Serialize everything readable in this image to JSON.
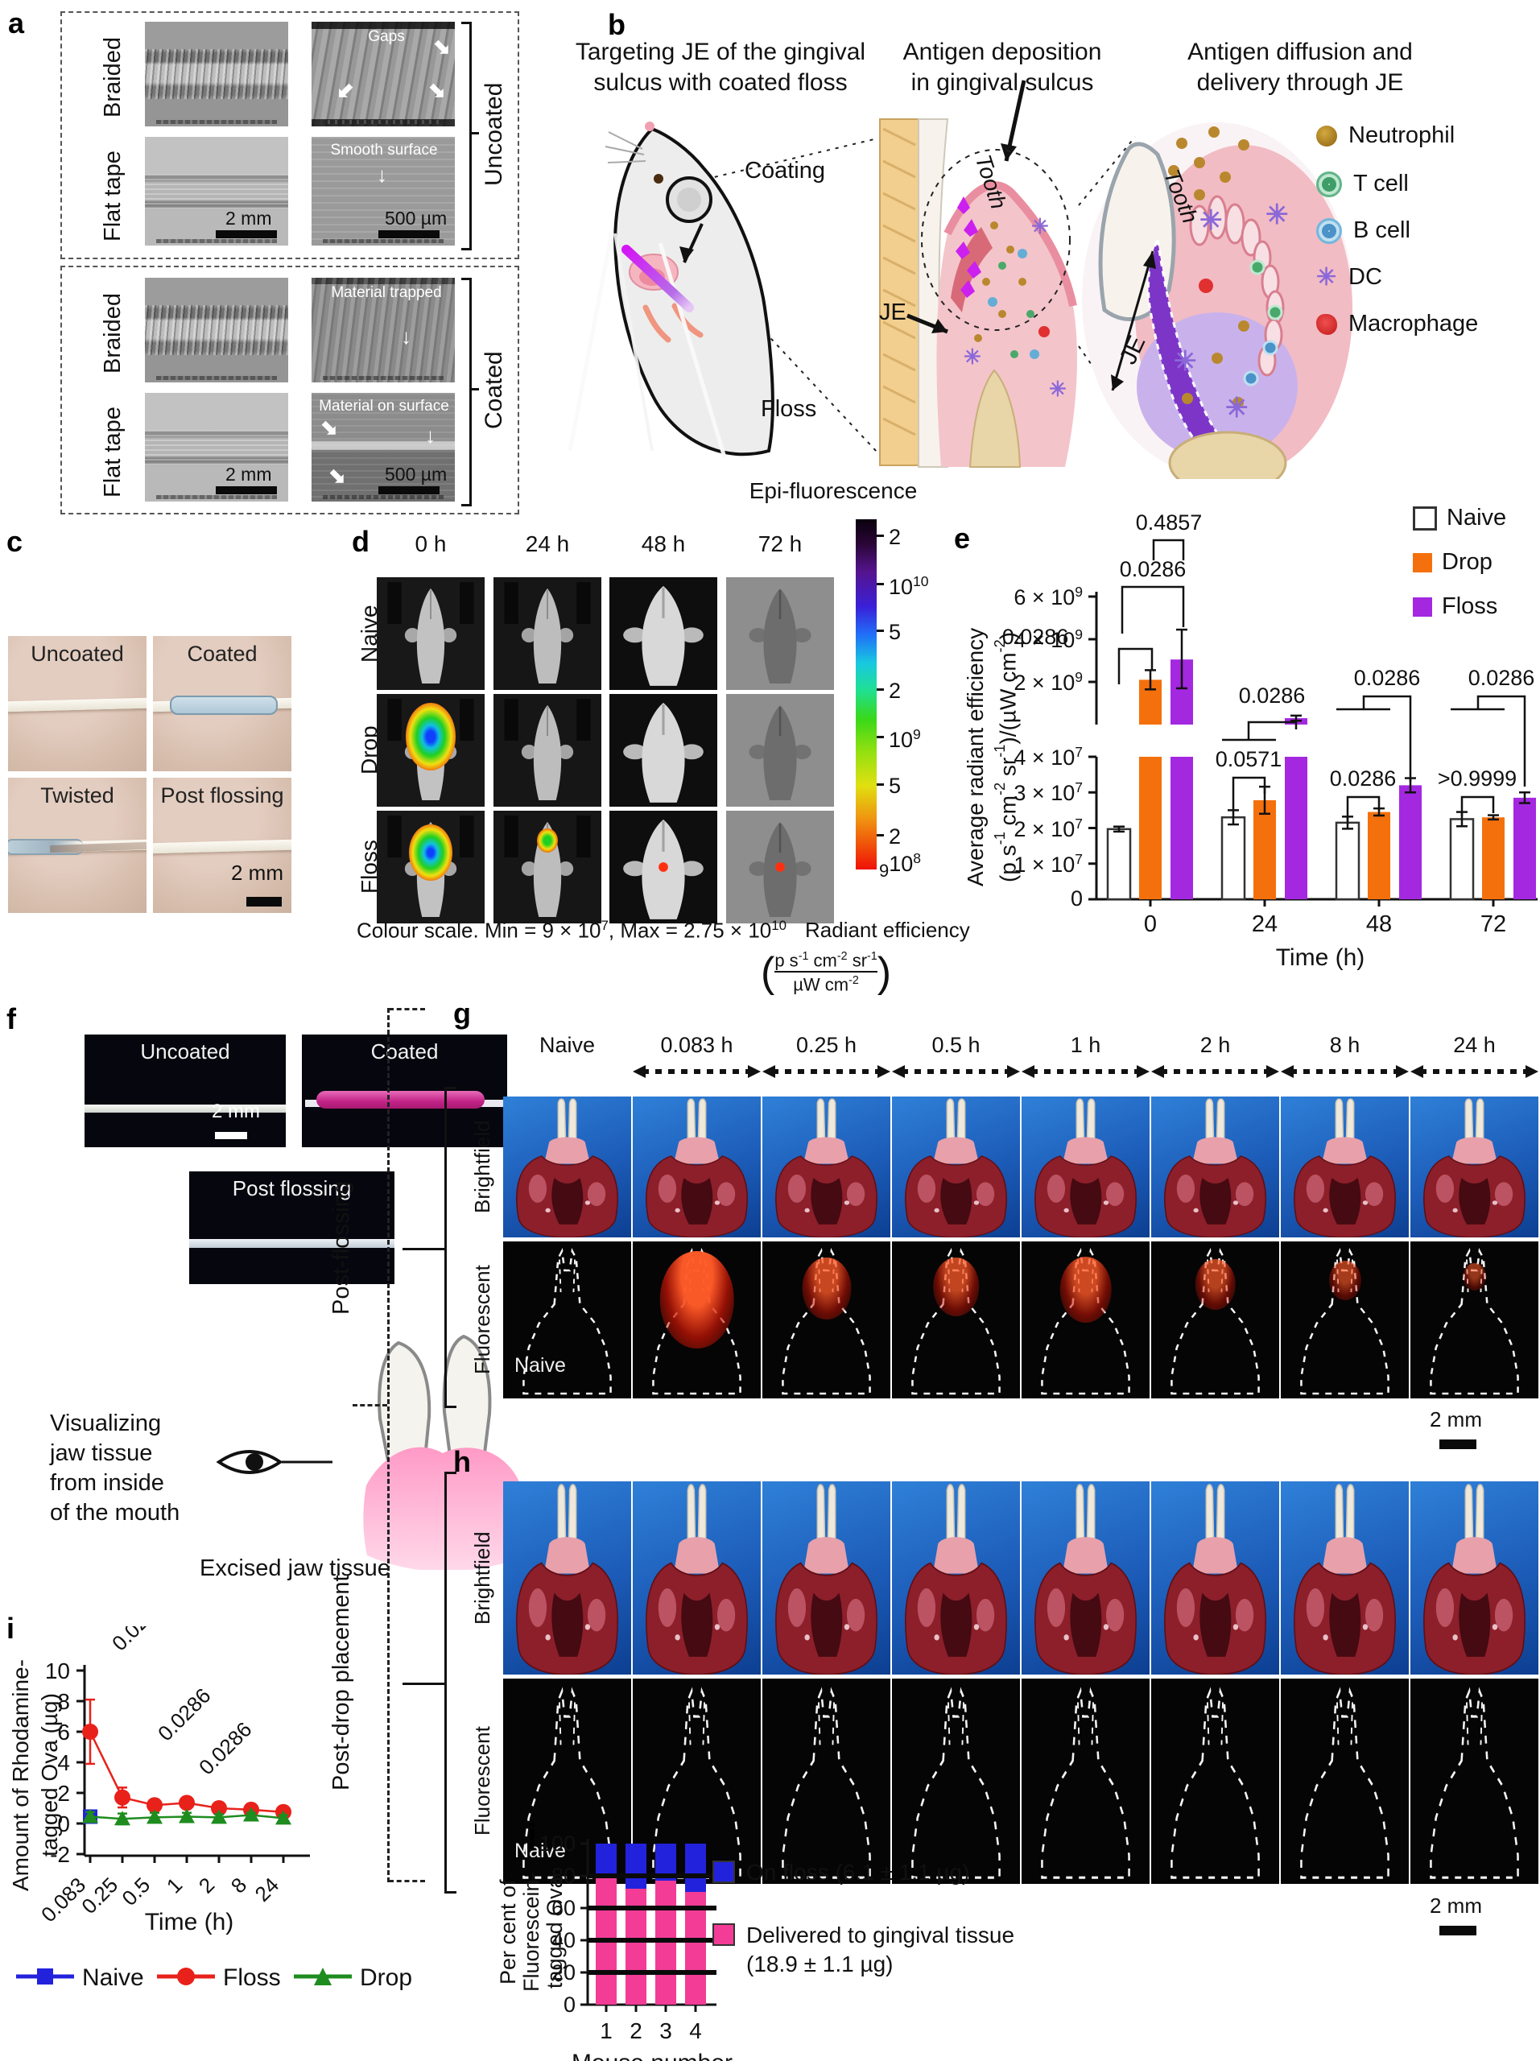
{
  "panel_a": {
    "label": "a",
    "row_labels": [
      "Braided",
      "Flat tape"
    ],
    "boxes": [
      {
        "side_label": "Uncoated",
        "ann_top": "Gaps",
        "ann_bottom": "Smooth surface",
        "scale_left": "2 mm",
        "scale_right": "500 µm"
      },
      {
        "side_label": "Coated",
        "ann_top": "Material trapped",
        "ann_bottom": "Material on surface",
        "scale_left": "2 mm",
        "scale_right": "500 µm"
      }
    ]
  },
  "panel_b": {
    "label": "b",
    "title1a": "Targeting JE of the gingival",
    "title1b": "sulcus with coated floss",
    "title2a": "Antigen deposition",
    "title2b": "in gingival sulcus",
    "title3a": "Antigen diffusion and",
    "title3b": "delivery through JE",
    "coating_label": "Coating",
    "floss_label": "Floss",
    "tooth_label_mid": "Tooth",
    "je_label_mid": "JE",
    "tooth_label_right": "Tooth",
    "je_label_right": "JE",
    "legend": [
      {
        "name": "Neutrophil",
        "icon": "neutrophil-icon"
      },
      {
        "name": "T cell",
        "icon": "tcell-icon"
      },
      {
        "name": "B cell",
        "icon": "bcell-icon"
      },
      {
        "name": "DC",
        "icon": "dc-icon"
      },
      {
        "name": "Macrophage",
        "icon": "macrophage-icon"
      }
    ]
  },
  "panel_c": {
    "label": "c",
    "images": [
      {
        "label": "Uncoated",
        "style": "plain"
      },
      {
        "label": "Coated",
        "style": "coated"
      },
      {
        "label": "Twisted",
        "style": "twisted"
      },
      {
        "label": "Post flossing",
        "style": "post",
        "scale": "2 mm"
      }
    ]
  },
  "panel_d": {
    "label": "d",
    "col_headers": [
      "0 h",
      "24 h",
      "48 h",
      "72 h"
    ],
    "row_headers": [
      "Naive",
      "Drop",
      "Floss"
    ],
    "signals": {
      "1-0": "large",
      "2-0": "large2",
      "2-1": "small",
      "2-2": "dot",
      "2-3": "dot"
    },
    "colorbar": {
      "title": "Epi-fluorescence",
      "ticks": [
        {
          "t": "2",
          "y": 652
        },
        {
          "t": "10^10",
          "y": 712
        },
        {
          "t": "5",
          "y": 770
        },
        {
          "t": "2",
          "y": 843
        },
        {
          "t": "10^9",
          "y": 902
        },
        {
          "t": "5",
          "y": 961
        },
        {
          "t": "2",
          "y": 1024
        }
      ],
      "bottom_prefix": "9",
      "bottom_label": "10^8"
    },
    "caption": "Colour scale. Min = 9 × 10^7, Max = 2.75 × 10^10",
    "radiant_label": "Radiant efficiency",
    "frac_top": "p s^-1 cm^-2 sr^-1",
    "frac_bottom": "µW cm^-2"
  },
  "panel_f": {
    "label": "f",
    "img1": "Uncoated",
    "img1_scale": "2 mm",
    "img2": "Coated",
    "img3": "Post flossing",
    "caption_lines": [
      "Visualizing",
      "jaw tissue",
      "from inside",
      "of the mouth"
    ],
    "sub_caption": "Excised jaw tissue"
  },
  "panel_g": {
    "label": "g",
    "col_headers": [
      "Naive",
      "0.083 h",
      "0.25 h",
      "0.5 h",
      "1 h",
      "2 h",
      "8 h",
      "24 h"
    ],
    "side_label": "Post-flossing",
    "row_headers": [
      "Brightfield",
      "Fluorescent"
    ],
    "naive_label": "Naive",
    "scale": "2 mm",
    "signals": [
      0,
      0.95,
      0.5,
      0.45,
      0.55,
      0.35,
      0.2,
      0.05
    ]
  },
  "panel_h": {
    "label": "h",
    "side_label": "Post-drop placement",
    "row_headers": [
      "Brightfield",
      "Fluorescent"
    ],
    "naive_label": "Naive",
    "scale": "2 mm",
    "signals": [
      0,
      0,
      0,
      0,
      0,
      0,
      0,
      0
    ]
  },
  "chart_data": [
    {
      "id": "e",
      "panel_label": "e",
      "type": "bar",
      "title": "",
      "xlabel": "Time (h)",
      "ylabel_line1": "Average radiant efficiency",
      "ylabel_line2": "(p s^-1 cm^-2 sr^-1)/(µW cm^-2)",
      "categories": [
        "0",
        "24",
        "48",
        "72"
      ],
      "upper_axis": {
        "unit": "1e9",
        "ticks": [
          {
            "t": "6 × 10^9",
            "v": 6
          },
          {
            "t": "4 × 10^9",
            "v": 4
          },
          {
            "t": "2 × 10^9",
            "v": 2
          }
        ],
        "range": [
          0,
          6.1
        ]
      },
      "lower_axis": {
        "unit": "1e7",
        "ticks": [
          {
            "t": "4 × 10^7",
            "v": 4
          },
          {
            "t": "3 × 10^7",
            "v": 3
          },
          {
            "t": "2 × 10^7",
            "v": 2
          },
          {
            "t": "1 × 10^7",
            "v": 1
          },
          {
            "t": "0",
            "v": 0
          }
        ],
        "range": [
          0,
          4
        ]
      },
      "legend_position": "top-right",
      "series": [
        {
          "name": "Naive",
          "color": "#ffffff",
          "border": "#333333",
          "lower_e7": [
            1.97,
            2.3,
            2.15,
            2.25
          ],
          "lower_err_e7": [
            0.07,
            0.2,
            0.17,
            0.2
          ],
          "upper_e9": [
            null,
            null,
            null,
            null
          ],
          "upper_err_e9": [
            null,
            null,
            null,
            null
          ]
        },
        {
          "name": "Drop",
          "color": "#f4700c",
          "border": "none",
          "lower_e7": [
            210,
            2.78,
            2.45,
            2.3
          ],
          "lower_err_e7": [
            0,
            0.38,
            0.1,
            0.06
          ],
          "upper_e9": [
            2.1,
            null,
            null,
            null
          ],
          "upper_err_e9": [
            [
              0.45,
              0.45
            ],
            null,
            null,
            null
          ]
        },
        {
          "name": "Floss",
          "color": "#a428e0",
          "border": "none",
          "lower_e7": [
            305,
            30,
            3.2,
            2.85
          ],
          "lower_err_e7": [
            0,
            0,
            0.2,
            0.15
          ],
          "upper_e9": [
            3.05,
            0.3,
            null,
            null
          ],
          "upper_err_e9": [
            [
              1.35,
              1.4
            ],
            [
              0.12,
              0.12
            ],
            null,
            null
          ]
        }
      ],
      "pvalues": [
        {
          "text": "0.0286",
          "x1": 1390,
          "x2": 1431,
          "y": 806,
          "l1": 44,
          "l2": 26,
          "tx": 1286,
          "ty": 800
        },
        {
          "text": "0.0286",
          "x1": 1394,
          "x2": 1470,
          "y": 729,
          "l1": 58,
          "l2": 50,
          "tx": 1432,
          "ty": 716
        },
        {
          "text": "0.4857",
          "x1": 1433,
          "x2": 1470,
          "y": 671,
          "l1": 25,
          "l2": 25,
          "tx": 1452,
          "ty": 658
        },
        {
          "text": "0.0286",
          "x1": 1551,
          "x2": 1610,
          "y": 897,
          "l1": 0,
          "l2": 9,
          "tx": 1580,
          "ty": 873,
          "fx1": 1518,
          "fx2": 1585,
          "fy": 919
        },
        {
          "text": "0.0571",
          "x1": 1532,
          "x2": 1571,
          "y": 966,
          "l1": 40,
          "l2": 20,
          "tx": 1551,
          "ty": 952
        },
        {
          "text": "0.0286",
          "x1": 1694,
          "x2": 1752,
          "y": 865,
          "l1": 0,
          "l2": 106,
          "tx": 1723,
          "ty": 851,
          "fx1": 1660,
          "fx2": 1727,
          "fy": 881
        },
        {
          "text": "0.0286",
          "x1": 1674,
          "x2": 1713,
          "y": 990,
          "l1": 30,
          "l2": 17,
          "tx": 1693,
          "ty": 976
        },
        {
          "text": "0.0286",
          "x1": 1836,
          "x2": 1894,
          "y": 865,
          "l1": 0,
          "l2": 112,
          "tx": 1865,
          "ty": 851,
          "fx1": 1802,
          "fx2": 1869,
          "fy": 881
        },
        {
          "text": ">0.9999",
          "x1": 1816,
          "x2": 1855,
          "y": 990,
          "l1": 24,
          "l2": 20,
          "tx": 1835,
          "ty": 976
        }
      ]
    },
    {
      "id": "i",
      "panel_label": "i",
      "type": "line",
      "xlabel": "Time (h)",
      "ylabel_line1": "Amount of Rhodamine-",
      "ylabel_line2": "tagged Ova (µg)",
      "categories": [
        "0.083",
        "0.25",
        "0.5",
        "1",
        "2",
        "8",
        "24"
      ],
      "ylim": [
        -2,
        10
      ],
      "yticks": [
        10,
        8,
        6,
        4,
        2,
        0,
        -2
      ],
      "series": [
        {
          "name": "Naive",
          "marker": "square",
          "color": "#2222dd",
          "values": [
            0.45,
            null,
            null,
            null,
            null,
            null,
            null
          ],
          "errors": [
            0.3,
            null,
            null,
            null,
            null,
            null,
            null
          ]
        },
        {
          "name": "Floss",
          "marker": "circle",
          "color": "#e8211a",
          "values": [
            6,
            1.7,
            1.2,
            1.35,
            1.0,
            0.9,
            0.75
          ],
          "errors": [
            2.1,
            0.65,
            0.35,
            0.3,
            0.25,
            0.2,
            0.2
          ]
        },
        {
          "name": "Drop",
          "marker": "triangle",
          "color": "#1e8c1e",
          "values": [
            0.45,
            0.3,
            0.4,
            0.45,
            0.4,
            0.55,
            0.35
          ],
          "errors": [
            0.3,
            0.35,
            0.3,
            0.25,
            0.2,
            0.15,
            0.2
          ]
        }
      ],
      "pvalues": [
        {
          "text": "0.0286",
          "x": 150,
          "y": 2052
        },
        {
          "text": "0.0286",
          "x": 207,
          "y": 2164
        },
        {
          "text": "0.0286",
          "x": 258,
          "y": 2206
        }
      ],
      "legend": [
        {
          "name": "Naive",
          "marker": "square",
          "color": "#2222dd"
        },
        {
          "name": "Floss",
          "marker": "circle",
          "color": "#e8211a"
        },
        {
          "name": "Drop",
          "marker": "triangle",
          "color": "#1e8c1e"
        }
      ]
    },
    {
      "id": "j",
      "panel_label": "j",
      "type": "stacked-bar",
      "xlabel": "Mouse number",
      "ylabel_lines": [
        "Per cent of",
        "Fluorescein-",
        "tagged Ova"
      ],
      "categories": [
        "1",
        "2",
        "3",
        "4"
      ],
      "yticks": [
        100,
        80,
        60,
        40,
        20,
        0
      ],
      "gridlines": [
        20,
        40,
        60,
        80
      ],
      "series": [
        {
          "name": "Delivered to gingival tissue (18.9 ± 1.1 µg)",
          "color": "#f23c96",
          "values": [
            81,
            72,
            77,
            70
          ]
        },
        {
          "name": "On floss (6.1 ± 1.1 µg)",
          "color": "#2222dd",
          "values": [
            19,
            28,
            23,
            30
          ]
        }
      ],
      "legend": [
        {
          "color": "#2222dd",
          "line1": "On floss (6.1 ± 1.1 µg)",
          "line2": ""
        },
        {
          "color": "#f23c96",
          "line1": "Delivered to gingival tissue",
          "line2": "(18.9 ± 1.1 µg)"
        }
      ]
    }
  ]
}
